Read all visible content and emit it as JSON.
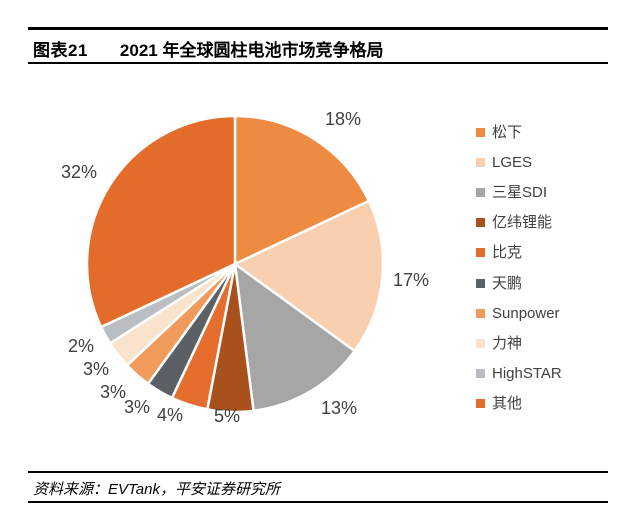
{
  "header": {
    "figure_label": "图表21",
    "title": "2021 年全球圆柱电池市场竞争格局"
  },
  "chart_data": {
    "type": "pie",
    "title": "2021 年全球圆柱电池市场竞争格局",
    "unit": "percent",
    "start_angle_deg": 0,
    "direction": "clockwise",
    "legend_position": "right",
    "label_color": "#404040",
    "divider_color": "#ffffff",
    "slices": [
      {
        "label": "松下",
        "value": 18,
        "display": "18%",
        "color": "#EE8B43"
      },
      {
        "label": "LGES",
        "value": 17,
        "display": "17%",
        "color": "#F8CFAF"
      },
      {
        "label": "三星SDI",
        "value": 13,
        "display": "13%",
        "color": "#A6A6A6"
      },
      {
        "label": "亿纬锂能",
        "value": 5,
        "display": "5%",
        "color": "#A9511D"
      },
      {
        "label": "比克",
        "value": 4,
        "display": "4%",
        "color": "#E56E2E"
      },
      {
        "label": "天鹏",
        "value": 3,
        "display": "3%",
        "color": "#5B5F66"
      },
      {
        "label": "Sunpower",
        "value": 3,
        "display": "3%",
        "color": "#F09A5C"
      },
      {
        "label": "力神",
        "value": 3,
        "display": "3%",
        "color": "#FAE3CC"
      },
      {
        "label": "HighSTAR",
        "value": 2,
        "display": "2%",
        "color": "#BABDC2"
      },
      {
        "label": "其他",
        "value": 32,
        "display": "32%",
        "color": "#E46C2A"
      }
    ]
  },
  "footer": {
    "source": "资料来源：EVTank，平安证券研究所"
  }
}
